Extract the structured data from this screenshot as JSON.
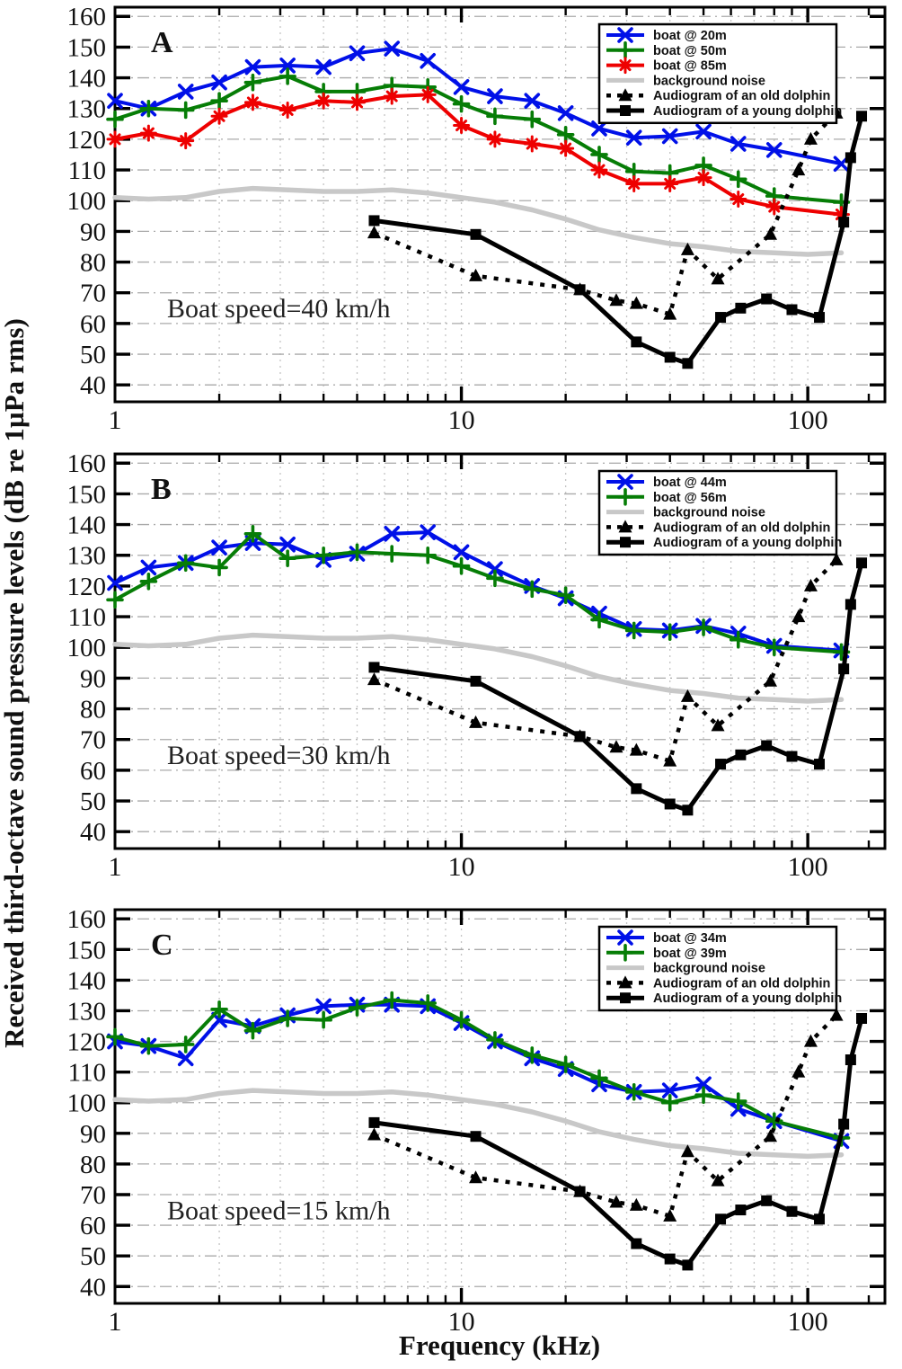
{
  "figure": {
    "y_axis_title": "Received third-octave sound pressure levels (dB re 1µPa rms)",
    "x_axis_title": "Frequency (kHz)",
    "colors": {
      "boat_near": "#0010e8",
      "boat_mid": "#067d06",
      "boat_far": "#ee0000",
      "background_noise": "#c8c8c8",
      "audiogram": "#000000",
      "grid_h": "#aaaaaa",
      "grid_v": "#c4c4c4"
    }
  },
  "chart_data": [
    {
      "type": "line",
      "panel_label": "A",
      "annotation": "Boat speed=40 km/h",
      "x_axis": {
        "scale": "log",
        "min": 1,
        "max": 167,
        "tick_labels": [
          1,
          10,
          100
        ]
      },
      "y_axis": {
        "min": 40,
        "max": 160,
        "ticks": [
          40,
          50,
          60,
          70,
          80,
          90,
          100,
          110,
          120,
          130,
          140,
          150,
          160
        ]
      },
      "legend_position": "top-right",
      "series": [
        {
          "name": "boat @ 20m",
          "color": "#0010e8",
          "marker": "x",
          "line": "solid",
          "width": 4,
          "x": [
            1,
            1.25,
            1.6,
            2,
            2.5,
            3.15,
            4,
            5,
            6.3,
            8,
            10,
            12.5,
            16,
            20,
            25,
            31.5,
            40,
            50,
            63,
            80,
            125
          ],
          "y": [
            132.5,
            130,
            135.5,
            138.5,
            143.5,
            144,
            143.5,
            148,
            149.5,
            145.5,
            137,
            134,
            132.5,
            128.5,
            123.5,
            120.5,
            121,
            122.5,
            118.5,
            116.5,
            112
          ]
        },
        {
          "name": "boat @ 50m",
          "color": "#067d06",
          "marker": "plus",
          "line": "solid",
          "width": 4,
          "x": [
            1,
            1.25,
            1.6,
            2,
            2.5,
            3.15,
            4,
            5,
            6.3,
            8,
            10,
            12.5,
            16,
            20,
            25,
            31.5,
            40,
            50,
            63,
            80,
            125
          ],
          "y": [
            126.5,
            130,
            129.5,
            132.5,
            138.5,
            140.5,
            135.5,
            135.5,
            137.5,
            137,
            131.5,
            127.5,
            126.5,
            121.5,
            115,
            109.5,
            109,
            111.5,
            107,
            101.5,
            99.5
          ]
        },
        {
          "name": "boat @ 85m",
          "color": "#ee0000",
          "marker": "asterisk",
          "line": "solid",
          "width": 4,
          "x": [
            1,
            1.25,
            1.6,
            2,
            2.5,
            3.15,
            4,
            5,
            6.3,
            8,
            10,
            12.5,
            16,
            20,
            25,
            31.5,
            40,
            50,
            63,
            80,
            125
          ],
          "y": [
            120,
            122,
            119.5,
            127.5,
            132,
            129.5,
            132.5,
            132,
            134,
            134.5,
            124.5,
            120,
            118.5,
            117,
            110,
            105.5,
            105.5,
            107.5,
            100.5,
            98,
            95.5
          ]
        },
        {
          "name": "background noise",
          "color": "#c8c8c8",
          "marker": "none",
          "line": "solid",
          "width": 5.5,
          "x": [
            1,
            1.25,
            1.6,
            2,
            2.5,
            3.15,
            4,
            5,
            6.3,
            8,
            10,
            12.5,
            16,
            20,
            25,
            31.5,
            40,
            50,
            63,
            80,
            100,
            125
          ],
          "y": [
            101,
            100.5,
            101,
            103,
            104,
            103.5,
            103,
            103,
            103.5,
            102.5,
            101,
            99.5,
            97,
            94,
            90.5,
            88,
            86,
            85,
            83.5,
            83,
            82.5,
            83
          ]
        },
        {
          "name": "Audiogram of an old dolphin",
          "color": "#000000",
          "marker": "triangle",
          "line": "dotted",
          "width": 4.5,
          "x": [
            5.6,
            11,
            22,
            28,
            32,
            40,
            45,
            55,
            78,
            94,
            102,
            121
          ],
          "y": [
            89.5,
            75.5,
            71,
            67.5,
            66.5,
            63,
            84,
            74.5,
            89,
            110,
            120,
            128.5
          ]
        },
        {
          "name": "Audiogram of a young dolphin",
          "color": "#000000",
          "marker": "square",
          "line": "solid",
          "width": 5,
          "x": [
            5.6,
            11,
            22,
            32,
            40,
            45,
            56,
            64,
            76,
            90,
            108,
            127,
            133,
            143
          ],
          "y": [
            93.5,
            89,
            71,
            54,
            49,
            47,
            62,
            65,
            68,
            64.5,
            62,
            93,
            114,
            127.5
          ]
        }
      ]
    },
    {
      "type": "line",
      "panel_label": "B",
      "annotation": "Boat speed=30 km/h",
      "x_axis": {
        "scale": "log",
        "min": 1,
        "max": 167,
        "tick_labels": [
          1,
          10,
          100
        ]
      },
      "y_axis": {
        "min": 40,
        "max": 160,
        "ticks": [
          40,
          50,
          60,
          70,
          80,
          90,
          100,
          110,
          120,
          130,
          140,
          150,
          160
        ]
      },
      "legend_position": "top-right",
      "series": [
        {
          "name": "boat @ 44m",
          "color": "#0010e8",
          "marker": "x",
          "line": "solid",
          "width": 4,
          "x": [
            1,
            1.25,
            1.6,
            2,
            2.5,
            3.15,
            4,
            5,
            6.3,
            8,
            10,
            12.5,
            16,
            20,
            25,
            31.5,
            40,
            50,
            63,
            80,
            125
          ],
          "y": [
            121,
            126,
            127.5,
            132.5,
            134,
            133.5,
            128.5,
            130.5,
            137,
            137.5,
            131,
            125.5,
            120,
            116,
            111,
            106,
            105.5,
            107,
            104.5,
            100.5,
            99
          ]
        },
        {
          "name": "boat @ 56m",
          "color": "#067d06",
          "marker": "plus",
          "line": "solid",
          "width": 4,
          "x": [
            1,
            1.25,
            1.6,
            2,
            2.5,
            3.15,
            4,
            5,
            6.3,
            8,
            10,
            12.5,
            16,
            20,
            25,
            31.5,
            40,
            50,
            63,
            80,
            125
          ],
          "y": [
            115.5,
            121.5,
            127.5,
            126,
            137,
            129,
            130,
            131,
            130.5,
            130,
            126.5,
            122.5,
            119,
            117,
            109,
            105.5,
            105,
            106.5,
            102.5,
            100,
            98.5
          ]
        },
        {
          "name": "background noise",
          "color": "#c8c8c8",
          "marker": "none",
          "line": "solid",
          "width": 5.5,
          "x": [
            1,
            1.25,
            1.6,
            2,
            2.5,
            3.15,
            4,
            5,
            6.3,
            8,
            10,
            12.5,
            16,
            20,
            25,
            31.5,
            40,
            50,
            63,
            80,
            100,
            125
          ],
          "y": [
            101,
            100.5,
            101,
            103,
            104,
            103.5,
            103,
            103,
            103.5,
            102.5,
            101,
            99.5,
            97,
            94,
            90.5,
            88,
            86,
            85,
            83.5,
            83,
            82.5,
            83
          ]
        },
        {
          "name": "Audiogram of an old dolphin",
          "color": "#000000",
          "marker": "triangle",
          "line": "dotted",
          "width": 4.5,
          "x": [
            5.6,
            11,
            22,
            28,
            32,
            40,
            45,
            55,
            78,
            94,
            102,
            121
          ],
          "y": [
            89.5,
            75.5,
            71,
            67.5,
            66.5,
            63,
            84,
            74.5,
            89,
            110,
            120,
            128.5
          ]
        },
        {
          "name": "Audiogram of a young dolphin",
          "color": "#000000",
          "marker": "square",
          "line": "solid",
          "width": 5,
          "x": [
            5.6,
            11,
            22,
            32,
            40,
            45,
            56,
            64,
            76,
            90,
            108,
            127,
            133,
            143
          ],
          "y": [
            93.5,
            89,
            71,
            54,
            49,
            47,
            62,
            65,
            68,
            64.5,
            62,
            93,
            114,
            127.5
          ]
        }
      ]
    },
    {
      "type": "line",
      "panel_label": "C",
      "annotation": "Boat speed=15 km/h",
      "x_axis": {
        "scale": "log",
        "min": 1,
        "max": 167,
        "tick_labels": [
          1,
          10,
          100
        ]
      },
      "y_axis": {
        "min": 40,
        "max": 160,
        "ticks": [
          40,
          50,
          60,
          70,
          80,
          90,
          100,
          110,
          120,
          130,
          140,
          150,
          160
        ]
      },
      "legend_position": "top-right",
      "series": [
        {
          "name": "boat @ 34m",
          "color": "#0010e8",
          "marker": "x",
          "line": "solid",
          "width": 4,
          "x": [
            1,
            1.25,
            1.6,
            2,
            2.5,
            3.15,
            4,
            5,
            6.3,
            8,
            10,
            12.5,
            16,
            20,
            25,
            31.5,
            40,
            50,
            63,
            80,
            125
          ],
          "y": [
            120,
            118.5,
            114.5,
            127,
            125,
            128.5,
            131.5,
            132,
            132,
            131.5,
            126,
            120,
            114.5,
            111,
            106,
            103.5,
            104,
            106,
            98,
            94,
            87.5
          ]
        },
        {
          "name": "boat @ 39m",
          "color": "#067d06",
          "marker": "plus",
          "line": "solid",
          "width": 4,
          "x": [
            1,
            1.25,
            1.6,
            2,
            2.5,
            3.15,
            4,
            5,
            6.3,
            8,
            10,
            12.5,
            16,
            20,
            25,
            31.5,
            40,
            50,
            63,
            80,
            125
          ],
          "y": [
            121.5,
            118.5,
            119,
            130.5,
            123.5,
            127.5,
            127,
            131,
            133.5,
            132.5,
            127,
            120.5,
            115.5,
            112.5,
            108,
            103.5,
            100,
            102.5,
            100.5,
            94,
            88.5
          ]
        },
        {
          "name": "background noise",
          "color": "#c8c8c8",
          "marker": "none",
          "line": "solid",
          "width": 5.5,
          "x": [
            1,
            1.25,
            1.6,
            2,
            2.5,
            3.15,
            4,
            5,
            6.3,
            8,
            10,
            12.5,
            16,
            20,
            25,
            31.5,
            40,
            50,
            63,
            80,
            100,
            125
          ],
          "y": [
            101,
            100.5,
            101,
            103,
            104,
            103.5,
            103,
            103,
            103.5,
            102.5,
            101,
            99.5,
            97,
            94,
            90.5,
            88,
            86,
            85,
            83.5,
            83,
            82.5,
            83
          ]
        },
        {
          "name": "Audiogram of an old dolphin",
          "color": "#000000",
          "marker": "triangle",
          "line": "dotted",
          "width": 4.5,
          "x": [
            5.6,
            11,
            22,
            28,
            32,
            40,
            45,
            55,
            78,
            94,
            102,
            121
          ],
          "y": [
            89.5,
            75.5,
            71,
            67.5,
            66.5,
            63,
            84,
            74.5,
            89,
            110,
            120,
            128.5
          ]
        },
        {
          "name": "Audiogram of a young dolphin",
          "color": "#000000",
          "marker": "square",
          "line": "solid",
          "width": 5,
          "x": [
            5.6,
            11,
            22,
            32,
            40,
            45,
            56,
            64,
            76,
            90,
            108,
            127,
            133,
            143
          ],
          "y": [
            93.5,
            89,
            71,
            54,
            49,
            47,
            62,
            65,
            68,
            64.5,
            62,
            93,
            114,
            127.5
          ]
        }
      ]
    }
  ]
}
